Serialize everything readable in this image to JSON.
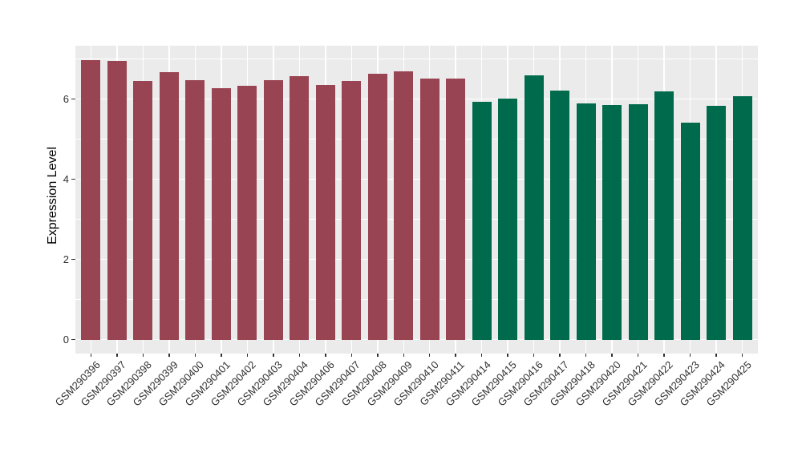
{
  "figure": {
    "background": "#FFFFFF"
  },
  "chart_data": {
    "type": "bar",
    "title": "",
    "xlabel": "",
    "ylabel": "Expression Level",
    "ylim": [
      0,
      7.35
    ],
    "yticks_major": [
      0,
      2,
      4,
      6
    ],
    "yticks_minor": [
      1,
      3,
      5,
      7
    ],
    "grid": "on",
    "legend_position": "none",
    "panel_background": "#EBEBEB",
    "grid_color": "#FFFFFF",
    "axis_text_color": "#303030",
    "group_colors": {
      "group1": "#994452",
      "group2": "#006B4C"
    },
    "bars": [
      {
        "label": "GSM290396",
        "value": 6.98,
        "group": "group1"
      },
      {
        "label": "GSM290397",
        "value": 6.96,
        "group": "group1"
      },
      {
        "label": "GSM290398",
        "value": 6.45,
        "group": "group1"
      },
      {
        "label": "GSM290399",
        "value": 6.67,
        "group": "group1"
      },
      {
        "label": "GSM290400",
        "value": 6.47,
        "group": "group1"
      },
      {
        "label": "GSM290401",
        "value": 6.27,
        "group": "group1"
      },
      {
        "label": "GSM290402",
        "value": 6.33,
        "group": "group1"
      },
      {
        "label": "GSM290403",
        "value": 6.47,
        "group": "group1"
      },
      {
        "label": "GSM290404",
        "value": 6.57,
        "group": "group1"
      },
      {
        "label": "GSM290406",
        "value": 6.35,
        "group": "group1"
      },
      {
        "label": "GSM290407",
        "value": 6.45,
        "group": "group1"
      },
      {
        "label": "GSM290408",
        "value": 6.63,
        "group": "group1"
      },
      {
        "label": "GSM290409",
        "value": 6.7,
        "group": "group1"
      },
      {
        "label": "GSM290410",
        "value": 6.52,
        "group": "group1"
      },
      {
        "label": "GSM290411",
        "value": 6.51,
        "group": "group1"
      },
      {
        "label": "GSM290414",
        "value": 5.93,
        "group": "group2"
      },
      {
        "label": "GSM290415",
        "value": 6.01,
        "group": "group2"
      },
      {
        "label": "GSM290416",
        "value": 6.59,
        "group": "group2"
      },
      {
        "label": "GSM290417",
        "value": 6.21,
        "group": "group2"
      },
      {
        "label": "GSM290418",
        "value": 5.9,
        "group": "group2"
      },
      {
        "label": "GSM290420",
        "value": 5.85,
        "group": "group2"
      },
      {
        "label": "GSM290421",
        "value": 5.87,
        "group": "group2"
      },
      {
        "label": "GSM290422",
        "value": 6.19,
        "group": "group2"
      },
      {
        "label": "GSM290423",
        "value": 5.42,
        "group": "group2"
      },
      {
        "label": "GSM290424",
        "value": 5.83,
        "group": "group2"
      },
      {
        "label": "GSM290425",
        "value": 6.07,
        "group": "group2"
      }
    ]
  }
}
